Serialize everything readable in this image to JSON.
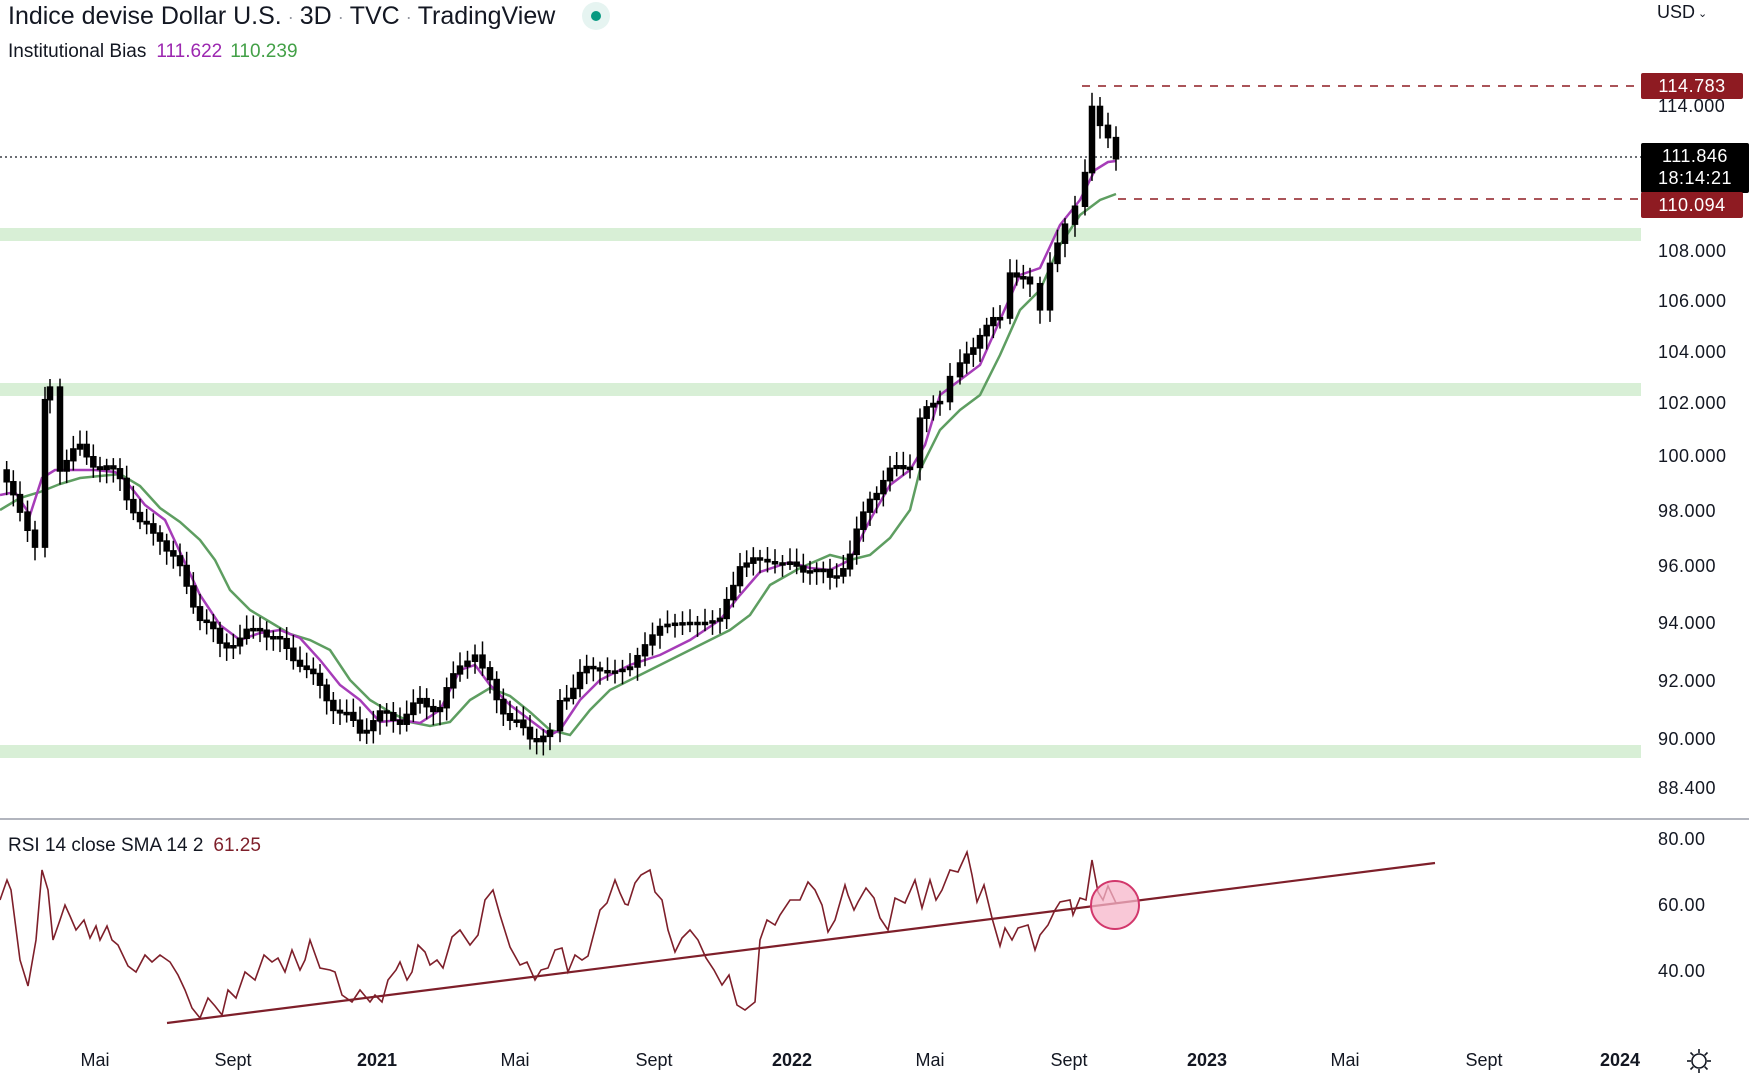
{
  "header": {
    "symbol_name": "Indice devise Dollar U.S.",
    "interval": "3D",
    "exchange": "TVC",
    "source": "TradingView",
    "status_color": "#089981",
    "currency": "USD"
  },
  "indicators": {
    "institutional_bias": {
      "label": "Institutional Bias",
      "value_fast": "111.622",
      "value_slow": "110.239",
      "color_fast": "#9c27b0",
      "color_slow": "#43a047"
    },
    "rsi": {
      "label": "RSI 14 close SMA 14 2",
      "value": "61.25",
      "color": "#7e1f2a"
    }
  },
  "price_axis": {
    "labels": [
      "114.000",
      "108.000",
      "106.000",
      "104.000",
      "102.000",
      "100.000",
      "98.000",
      "96.000",
      "94.000",
      "92.000",
      "90.000",
      "88.400"
    ],
    "tags": {
      "high": "114.783",
      "last": "111.846",
      "countdown": "18:14:21",
      "low": "110.094"
    }
  },
  "rsi_axis": {
    "labels": [
      "80.00",
      "60.00",
      "40.00"
    ]
  },
  "time_axis": {
    "labels": [
      {
        "text": "Mai",
        "year": false
      },
      {
        "text": "Sept",
        "year": false
      },
      {
        "text": "2021",
        "year": true
      },
      {
        "text": "Mai",
        "year": false
      },
      {
        "text": "Sept",
        "year": false
      },
      {
        "text": "2022",
        "year": true
      },
      {
        "text": "Mai",
        "year": false
      },
      {
        "text": "Sept",
        "year": false
      },
      {
        "text": "2023",
        "year": true
      },
      {
        "text": "Mai",
        "year": false
      },
      {
        "text": "Sept",
        "year": false
      },
      {
        "text": "2024",
        "year": true
      }
    ]
  },
  "chart_data": [
    {
      "type": "candlestick",
      "title": "Indice devise Dollar U.S. · 3D · TVC · TradingView",
      "xlabel": "",
      "ylabel": "USD",
      "x_ticks": [
        "Mai 2020",
        "Sept 2020",
        "2021",
        "Mai 2021",
        "Sept 2021",
        "2022",
        "Mai 2022",
        "Sept 2022",
        "2023",
        "Mai 2023",
        "Sept 2023",
        "2024"
      ],
      "ylim": [
        88.4,
        115.5
      ],
      "grid": false,
      "approx_close_path": [
        {
          "x": "Mar 2020",
          "y": 99.5
        },
        {
          "x": "Mar 2020 high",
          "y": 102.9
        },
        {
          "x": "Apr 2020",
          "y": 100.0
        },
        {
          "x": "Mai 2020",
          "y": 99.5
        },
        {
          "x": "Jun 2020",
          "y": 97.0
        },
        {
          "x": "Jul 2020",
          "y": 93.5
        },
        {
          "x": "Aug 2020",
          "y": 92.5
        },
        {
          "x": "Sept 2020",
          "y": 93.8
        },
        {
          "x": "Oct 2020",
          "y": 93.0
        },
        {
          "x": "Nov 2020",
          "y": 92.0
        },
        {
          "x": "Dec 2020",
          "y": 90.2
        },
        {
          "x": "Jan 2021",
          "y": 90.0
        },
        {
          "x": "Feb 2021",
          "y": 90.6
        },
        {
          "x": "Mar 2021",
          "y": 92.5
        },
        {
          "x": "Apr 2021",
          "y": 91.3
        },
        {
          "x": "Mai 2021",
          "y": 90.0
        },
        {
          "x": "Jun 2021",
          "y": 92.3
        },
        {
          "x": "Jul 2021",
          "y": 92.8
        },
        {
          "x": "Aug 2021",
          "y": 92.7
        },
        {
          "x": "Sept 2021",
          "y": 93.5
        },
        {
          "x": "Oct 2021",
          "y": 94.0
        },
        {
          "x": "Nov 2021",
          "y": 96.3
        },
        {
          "x": "Dec 2021",
          "y": 96.0
        },
        {
          "x": "Jan 2022",
          "y": 95.5
        },
        {
          "x": "Feb 2022",
          "y": 96.5
        },
        {
          "x": "Mar 2022",
          "y": 98.5
        },
        {
          "x": "Apr 2022",
          "y": 101.0
        },
        {
          "x": "Mai 2022",
          "y": 103.5
        },
        {
          "x": "Jun 2022",
          "y": 104.5
        },
        {
          "x": "Jul 2022",
          "y": 106.5
        },
        {
          "x": "Aug 2022",
          "y": 106.0
        },
        {
          "x": "Sept 2022",
          "y": 110.0
        },
        {
          "x": "late Sept 2022",
          "y": 114.78
        },
        {
          "x": "Oct 2022",
          "y": 111.846
        }
      ],
      "markers": {
        "high": 114.783,
        "last": 111.846,
        "low": 110.094
      },
      "horizontal_zones": [
        {
          "label": "resistance/support zone",
          "y_from": 108.6,
          "y_to": 109.1,
          "color": "#d8efd6"
        },
        {
          "label": "resistance/support zone",
          "y_from": 102.3,
          "y_to": 102.8,
          "color": "#d8efd6"
        },
        {
          "label": "resistance/support zone",
          "y_from": 89.4,
          "y_to": 89.9,
          "color": "#d8efd6"
        }
      ],
      "series": [
        {
          "name": "Institutional Bias fast",
          "color": "#9c27b0",
          "last": 111.622
        },
        {
          "name": "Institutional Bias slow",
          "color": "#43a047",
          "last": 110.239
        }
      ]
    },
    {
      "type": "line",
      "title": "RSI 14 close SMA 14 2",
      "ylim": [
        20,
        85
      ],
      "y_ticks": [
        80,
        60,
        40
      ],
      "series": [
        {
          "name": "RSI",
          "color": "#7e1f2a",
          "last": 61.25
        }
      ],
      "annotations": [
        {
          "type": "trendline",
          "from": {
            "x": "Aug 2020",
            "y": 24
          },
          "to": {
            "x": "Jul 2023",
            "y": 73
          }
        },
        {
          "type": "circle",
          "at": {
            "x": "Oct 2022",
            "y": 61
          },
          "color": "#f7b6c9"
        }
      ]
    }
  ]
}
